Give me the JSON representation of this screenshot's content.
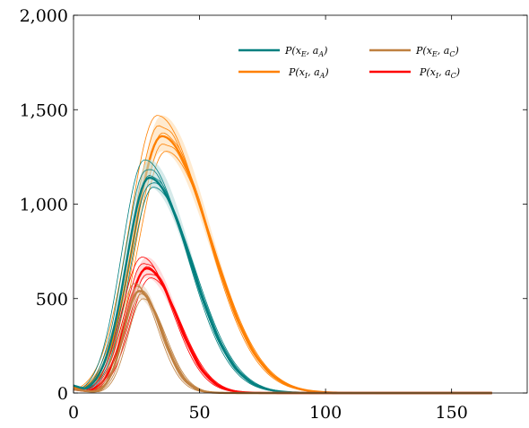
{
  "chart_data": {
    "type": "area",
    "title": "",
    "xlabel": "",
    "ylabel": "",
    "xlim": [
      0,
      180
    ],
    "ylim": [
      0,
      2000
    ],
    "x_ticks": [
      0,
      50,
      100,
      150
    ],
    "y_ticks": [
      0,
      500,
      1000,
      1500,
      2000
    ],
    "x_tick_labels": [
      "0",
      "50",
      "100",
      "150"
    ],
    "y_tick_labels": [
      "0",
      "500",
      "1,000",
      "1,500",
      "2,000"
    ],
    "grid": false,
    "legend_position": "top-right",
    "x_max_data": 166,
    "series": [
      {
        "name": "P(x_E, a_A)",
        "legend_main": "P(x",
        "legend_sub1": "E",
        "legend_mid": ", a",
        "legend_sub2": "A",
        "legend_end": ")",
        "color": "#007f7f",
        "fill": "#b2d8d8",
        "peak_x": 30,
        "peak_y": 1140,
        "band": [
          1090,
          1235
        ],
        "start_y": 40,
        "sigma_left": 9,
        "sigma_right": 16.5
      },
      {
        "name": "P(x_E, a_C)",
        "legend_main": "P(x",
        "legend_sub1": "E",
        "legend_mid": ", a",
        "legend_sub2": "C",
        "legend_end": ")",
        "color": "#bf8040",
        "fill": "#e8d0b8",
        "peak_x": 26,
        "peak_y": 540,
        "band": [
          500,
          580
        ],
        "start_y": 20,
        "sigma_left": 6,
        "sigma_right": 9
      },
      {
        "name": "P(x_I, a_A)",
        "legend_main": "P(x",
        "legend_sub1": "I",
        "legend_mid": ", a",
        "legend_sub2": "A",
        "legend_end": ")",
        "color": "#ff8000",
        "fill": "#ffd8a8",
        "peak_x": 35,
        "peak_y": 1360,
        "band": [
          1280,
          1470
        ],
        "start_y": 30,
        "sigma_left": 11,
        "sigma_right": 19
      },
      {
        "name": "P(x_I, a_C)",
        "legend_main": "P(x",
        "legend_sub1": "I",
        "legend_mid": ", a",
        "legend_sub2": "C",
        "legend_end": ")",
        "color": "#ff0000",
        "fill": "#ffc0c0",
        "peak_x": 29,
        "peak_y": 660,
        "band": [
          610,
          720
        ],
        "start_y": 20,
        "sigma_left": 8,
        "sigma_right": 12
      }
    ]
  }
}
